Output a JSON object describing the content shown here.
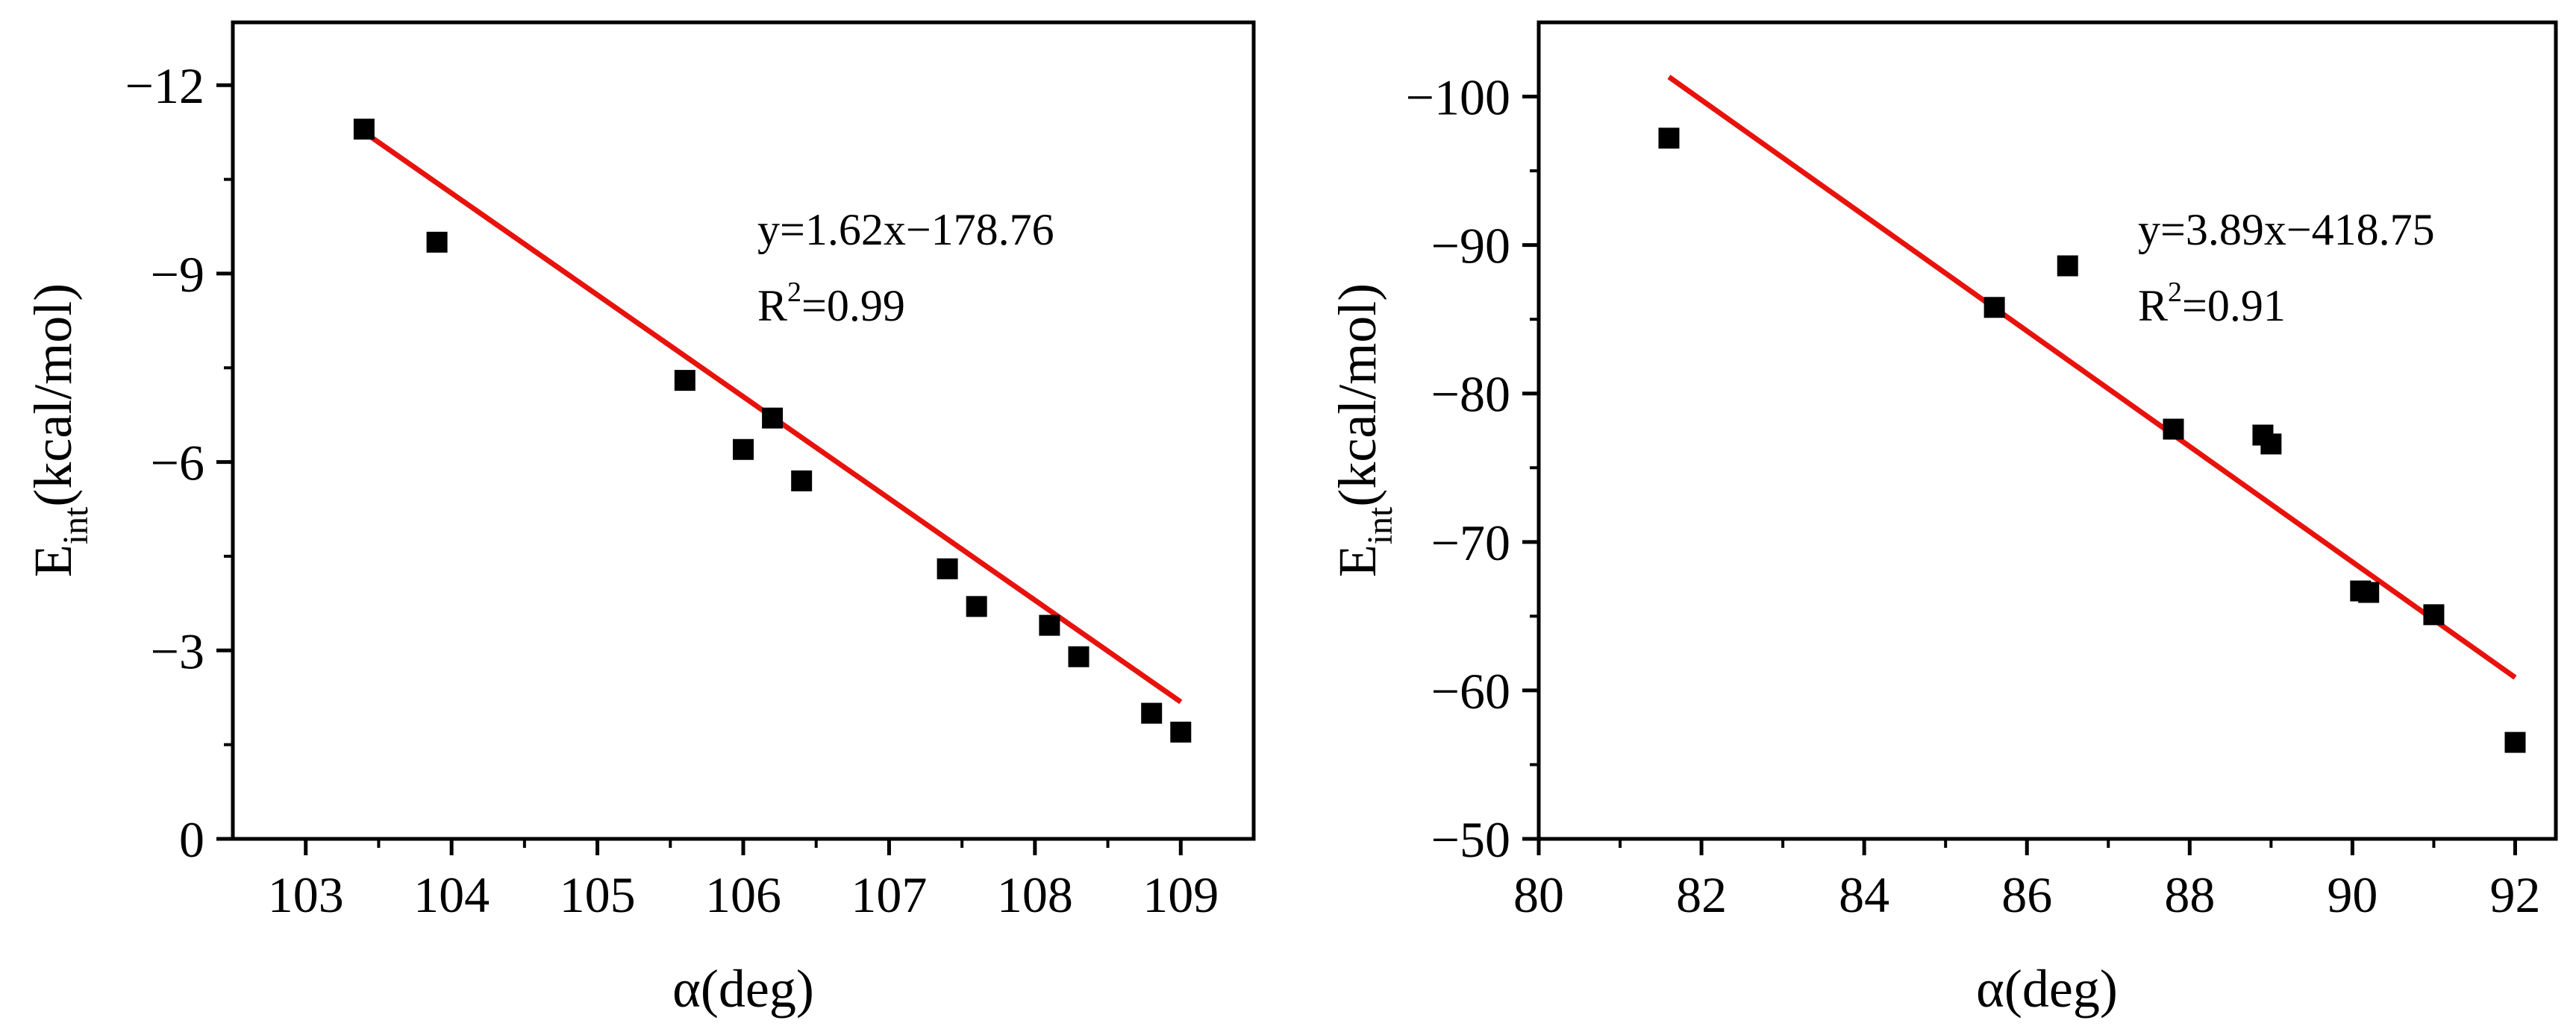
{
  "chart_data": [
    {
      "type": "scatter",
      "xlabel": "α(deg)",
      "ylabel_main": "E",
      "ylabel_sub": "int",
      "ylabel_rest": "(kcal/mol)",
      "xlim": [
        102.5,
        109.5
      ],
      "ylim": [
        0,
        -13
      ],
      "xticks": [
        103,
        104,
        105,
        106,
        107,
        108,
        109
      ],
      "xtick_labels": [
        "103",
        "104",
        "105",
        "106",
        "107",
        "108",
        "109"
      ],
      "yticks": [
        0,
        -3,
        -6,
        -9,
        -12
      ],
      "ytick_labels": [
        "0",
        "−3",
        "−6",
        "−9",
        "−12"
      ],
      "points": [
        [
          103.4,
          -11.3
        ],
        [
          103.9,
          -9.5
        ],
        [
          105.6,
          -7.3
        ],
        [
          106.0,
          -6.2
        ],
        [
          106.2,
          -6.7
        ],
        [
          106.4,
          -5.7
        ],
        [
          107.4,
          -4.3
        ],
        [
          107.6,
          -3.7
        ],
        [
          108.1,
          -3.4
        ],
        [
          108.3,
          -2.9
        ],
        [
          108.8,
          -2.0
        ],
        [
          109.0,
          -1.7
        ]
      ],
      "fit": {
        "slope": 1.62,
        "intercept": -178.76,
        "x_range": [
          103.4,
          109.0
        ]
      },
      "equation": "y=1.62x−178.76",
      "r2_prefix": "R",
      "r2_exp": "2",
      "r2_value": "=0.99",
      "marker_color": "#000000",
      "line_color": "#e8120c"
    },
    {
      "type": "scatter",
      "xlabel": "α(deg)",
      "ylabel_main": "E",
      "ylabel_sub": "int",
      "ylabel_rest": "(kcal/mol)",
      "xlim": [
        80,
        92.5
      ],
      "ylim": [
        -50,
        -105
      ],
      "xticks": [
        80,
        82,
        84,
        86,
        88,
        90,
        92
      ],
      "xtick_labels": [
        "80",
        "82",
        "84",
        "86",
        "88",
        "90",
        "92"
      ],
      "yticks": [
        -50,
        -60,
        -70,
        -80,
        -90,
        -100
      ],
      "ytick_labels": [
        "−50",
        "−60",
        "−70",
        "−80",
        "−90",
        "−100"
      ],
      "points": [
        [
          81.6,
          -97.2
        ],
        [
          85.6,
          -85.8
        ],
        [
          86.5,
          -88.6
        ],
        [
          87.8,
          -77.6
        ],
        [
          88.9,
          -77.2
        ],
        [
          89.0,
          -76.6
        ],
        [
          90.1,
          -66.7
        ],
        [
          90.2,
          -66.6
        ],
        [
          91.0,
          -65.1
        ],
        [
          92.0,
          -56.5
        ]
      ],
      "fit": {
        "slope": 3.89,
        "intercept": -418.75,
        "x_range": [
          81.6,
          92.0
        ]
      },
      "equation": "y=3.89x−418.75",
      "r2_prefix": "R",
      "r2_exp": "2",
      "r2_value": "=0.91",
      "marker_color": "#000000",
      "line_color": "#e8120c"
    }
  ]
}
